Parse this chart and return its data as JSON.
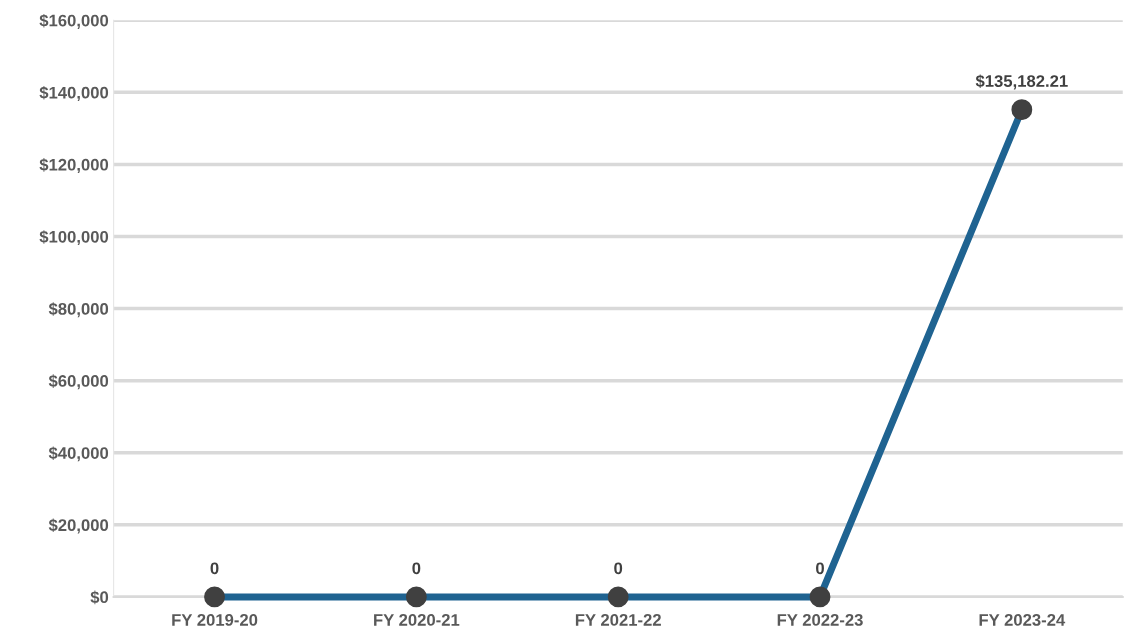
{
  "chart_data": {
    "type": "line",
    "categories": [
      "FY 2019-20",
      "FY 2020-21",
      "FY 2021-22",
      "FY 2022-23",
      "FY 2023-24"
    ],
    "series": [
      {
        "color": "#1f6391",
        "values": [
          0,
          0,
          0,
          0,
          135182.21
        ],
        "value_labels": [
          "0",
          "0",
          "0",
          "0",
          "$135,182.21"
        ]
      }
    ],
    "ylim": [
      0,
      160000
    ],
    "yticks": [
      {
        "value": 0,
        "label": "$0"
      },
      {
        "value": 20000,
        "label": "$20,000"
      },
      {
        "value": 40000,
        "label": "$40,000"
      },
      {
        "value": 60000,
        "label": "$60,000"
      },
      {
        "value": 80000,
        "label": "$80,000"
      },
      {
        "value": 100000,
        "label": "$100,000"
      },
      {
        "value": 120000,
        "label": "$120,000"
      },
      {
        "value": 140000,
        "label": "$140,000"
      },
      {
        "value": 160000,
        "label": "$160,000"
      }
    ],
    "grid": "y",
    "marker": "circle",
    "line_style": "solid"
  }
}
